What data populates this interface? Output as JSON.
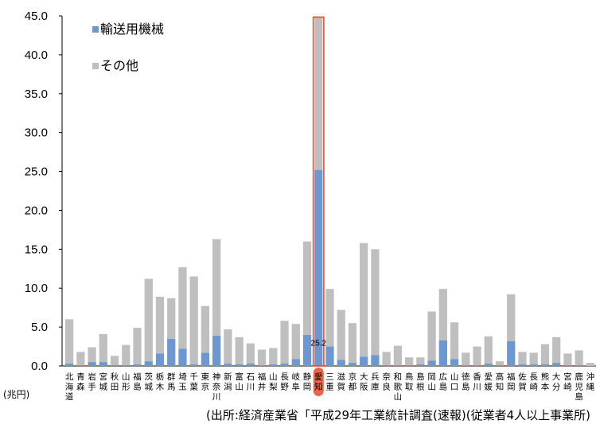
{
  "chart_data": {
    "type": "bar",
    "stacked": true,
    "categories": [
      "北海道",
      "青森",
      "岩手",
      "宮城",
      "秋田",
      "山形",
      "福島",
      "茨城",
      "栃木",
      "群馬",
      "埼玉",
      "千葉",
      "東京",
      "神奈川",
      "新潟",
      "富山",
      "石川",
      "福井",
      "山梨",
      "長野",
      "岐阜",
      "静岡",
      "愛知",
      "三重",
      "滋賀",
      "京都",
      "大阪",
      "兵庫",
      "奈良",
      "和歌山",
      "鳥取",
      "島根",
      "岡山",
      "広島",
      "山口",
      "徳島",
      "香川",
      "愛媛",
      "高知",
      "福岡",
      "佐賀",
      "長崎",
      "熊本",
      "大分",
      "宮崎",
      "鹿児島",
      "沖縄"
    ],
    "series": [
      {
        "name": "輸送用機械",
        "color": "#6d97cf",
        "values": [
          0.3,
          0.1,
          0.5,
          0.5,
          0.1,
          0.1,
          0.2,
          0.6,
          1.6,
          3.5,
          2.2,
          0.2,
          1.7,
          3.9,
          0.3,
          0.2,
          0.3,
          0.1,
          0.2,
          0.3,
          0.9,
          4.0,
          25.2,
          2.5,
          0.8,
          0.4,
          1.2,
          1.4,
          0.1,
          0.1,
          0.1,
          0.2,
          0.7,
          3.3,
          0.9,
          0.1,
          0.1,
          0.3,
          0.1,
          3.2,
          0.2,
          0.2,
          0.2,
          0.4,
          0.1,
          0.1,
          0.0
        ]
      },
      {
        "name": "その他",
        "color": "#bfbfbf",
        "values": [
          5.7,
          1.7,
          1.9,
          3.6,
          1.2,
          2.6,
          4.7,
          10.6,
          7.3,
          5.2,
          10.5,
          11.3,
          6.0,
          12.4,
          4.4,
          3.5,
          2.6,
          2.0,
          2.1,
          5.5,
          4.5,
          12.0,
          19.6,
          7.4,
          6.4,
          5.1,
          14.6,
          13.6,
          1.7,
          2.5,
          1.0,
          0.9,
          6.3,
          6.6,
          4.7,
          1.6,
          2.4,
          3.5,
          0.5,
          6.0,
          1.6,
          1.5,
          2.6,
          3.3,
          1.5,
          1.9,
          0.4
        ]
      }
    ],
    "ylim": [
      0,
      45
    ],
    "yticks": [
      "0.0",
      "5.0",
      "10.0",
      "15.0",
      "20.0",
      "25.0",
      "30.0",
      "35.0",
      "40.0",
      "45.0"
    ],
    "ylabel": "",
    "xlabel": "",
    "highlight_category": "愛知",
    "highlight_color": "#e84a2b",
    "annotation": {
      "category": "愛知",
      "text": "25.2"
    },
    "grid": false,
    "legend_position": "top-left"
  },
  "unit_label": "(兆円)",
  "source_text": "(出所:経済産業省「平成29年工業統計調査(速報)(従業者4人以上事業所)"
}
